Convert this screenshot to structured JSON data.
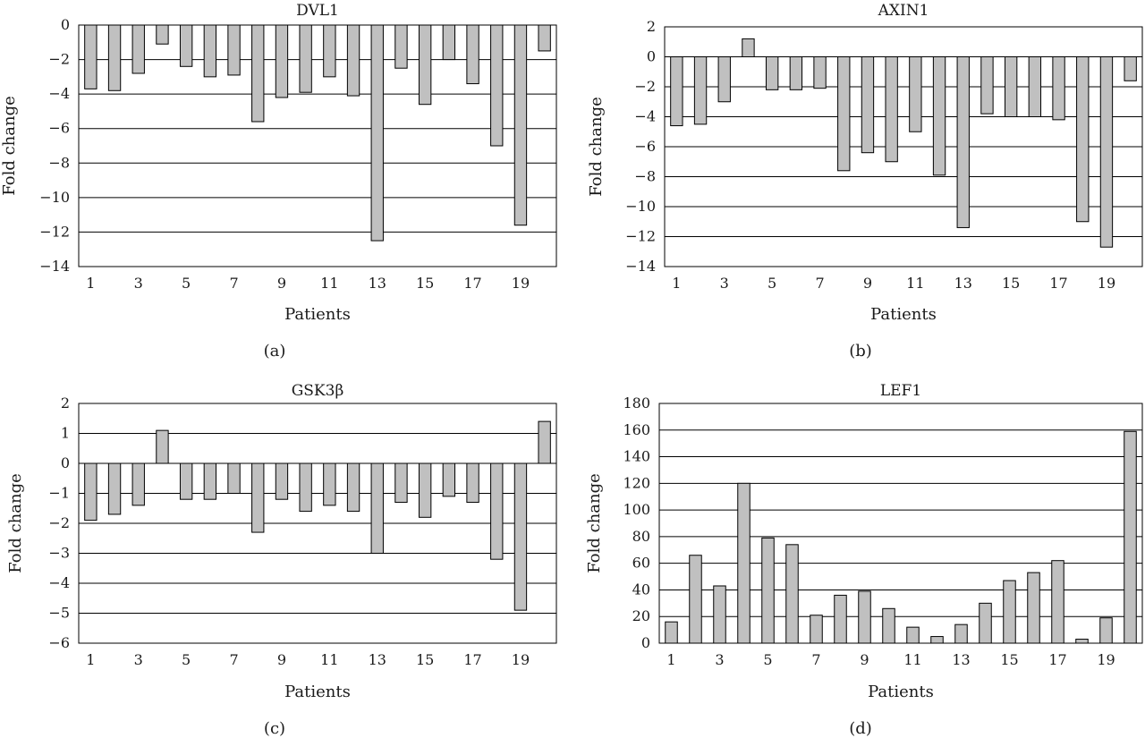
{
  "chart_data": [
    {
      "type": "bar",
      "title": "DVL1",
      "xlabel": "Patients",
      "ylabel": "Fold change",
      "caption": "(a)",
      "categories": [
        "1",
        "2",
        "3",
        "4",
        "5",
        "6",
        "7",
        "8",
        "9",
        "10",
        "11",
        "12",
        "13",
        "14",
        "15",
        "16",
        "17",
        "18",
        "19",
        "20"
      ],
      "x_tick_labels": [
        "1",
        "3",
        "5",
        "7",
        "9",
        "11",
        "13",
        "15",
        "17",
        "19"
      ],
      "y_tick_labels": [
        "0",
        "−2",
        "−4",
        "−6",
        "−8",
        "−10",
        "−12",
        "−14"
      ],
      "values": [
        -3.7,
        -3.8,
        -2.8,
        -1.1,
        -2.4,
        -3.0,
        -2.9,
        -5.6,
        -4.2,
        -3.9,
        -3.0,
        -4.1,
        -12.5,
        -2.5,
        -4.6,
        -2.0,
        -3.4,
        -7.0,
        -11.6,
        -1.5
      ],
      "ylim": [
        -14,
        0
      ],
      "ystep": 2,
      "grid": true
    },
    {
      "type": "bar",
      "title": "AXIN1",
      "xlabel": "Patients",
      "ylabel": "Fold change",
      "caption": "(b)",
      "categories": [
        "1",
        "2",
        "3",
        "4",
        "5",
        "6",
        "7",
        "8",
        "9",
        "10",
        "11",
        "12",
        "13",
        "14",
        "15",
        "16",
        "17",
        "18",
        "19",
        "20"
      ],
      "x_tick_labels": [
        "1",
        "3",
        "5",
        "7",
        "9",
        "11",
        "13",
        "15",
        "17",
        "19"
      ],
      "y_tick_labels": [
        "2",
        "0",
        "−2",
        "−4",
        "−6",
        "−8",
        "−10",
        "−12",
        "−14"
      ],
      "values": [
        -4.6,
        -4.5,
        -3.0,
        1.2,
        -2.2,
        -2.2,
        -2.1,
        -7.6,
        -6.4,
        -7.0,
        -5.0,
        -7.9,
        -11.4,
        -3.8,
        -4.0,
        -4.0,
        -4.2,
        -11.0,
        -12.7,
        -1.6
      ],
      "ylim": [
        -14,
        2
      ],
      "ystep": 2,
      "grid": true
    },
    {
      "type": "bar",
      "title": "GSK3β",
      "xlabel": "Patients",
      "ylabel": "Fold change",
      "caption": "(c)",
      "categories": [
        "1",
        "2",
        "3",
        "4",
        "5",
        "6",
        "7",
        "8",
        "9",
        "10",
        "11",
        "12",
        "13",
        "14",
        "15",
        "16",
        "17",
        "18",
        "19",
        "20"
      ],
      "x_tick_labels": [
        "1",
        "3",
        "5",
        "7",
        "9",
        "11",
        "13",
        "15",
        "17",
        "19"
      ],
      "y_tick_labels": [
        "2",
        "1",
        "0",
        "−1",
        "−2",
        "−3",
        "−4",
        "−5",
        "−6"
      ],
      "values": [
        -1.9,
        -1.7,
        -1.4,
        1.1,
        -1.2,
        -1.2,
        -1.0,
        -2.3,
        -1.2,
        -1.6,
        -1.4,
        -1.6,
        -3.0,
        -1.3,
        -1.8,
        -1.1,
        -1.3,
        -3.2,
        -4.9,
        1.4
      ],
      "ylim": [
        -6,
        2
      ],
      "ystep": 1,
      "grid": true
    },
    {
      "type": "bar",
      "title": "LEF1",
      "xlabel": "Patients",
      "ylabel": "Fold change",
      "caption": "(d)",
      "categories": [
        "1",
        "2",
        "3",
        "4",
        "5",
        "6",
        "7",
        "8",
        "9",
        "10",
        "11",
        "12",
        "13",
        "14",
        "15",
        "16",
        "17",
        "18",
        "19",
        "20"
      ],
      "x_tick_labels": [
        "1",
        "3",
        "5",
        "7",
        "9",
        "11",
        "13",
        "15",
        "17",
        "19"
      ],
      "y_tick_labels": [
        "180",
        "160",
        "140",
        "120",
        "100",
        "80",
        "60",
        "40",
        "20",
        "0"
      ],
      "values": [
        16,
        66,
        43,
        120,
        79,
        74,
        21,
        36,
        39,
        26,
        12,
        5,
        14,
        30,
        47,
        53,
        62,
        3,
        19,
        159
      ],
      "ylim": [
        0,
        180
      ],
      "ystep": 20,
      "grid": true
    }
  ]
}
